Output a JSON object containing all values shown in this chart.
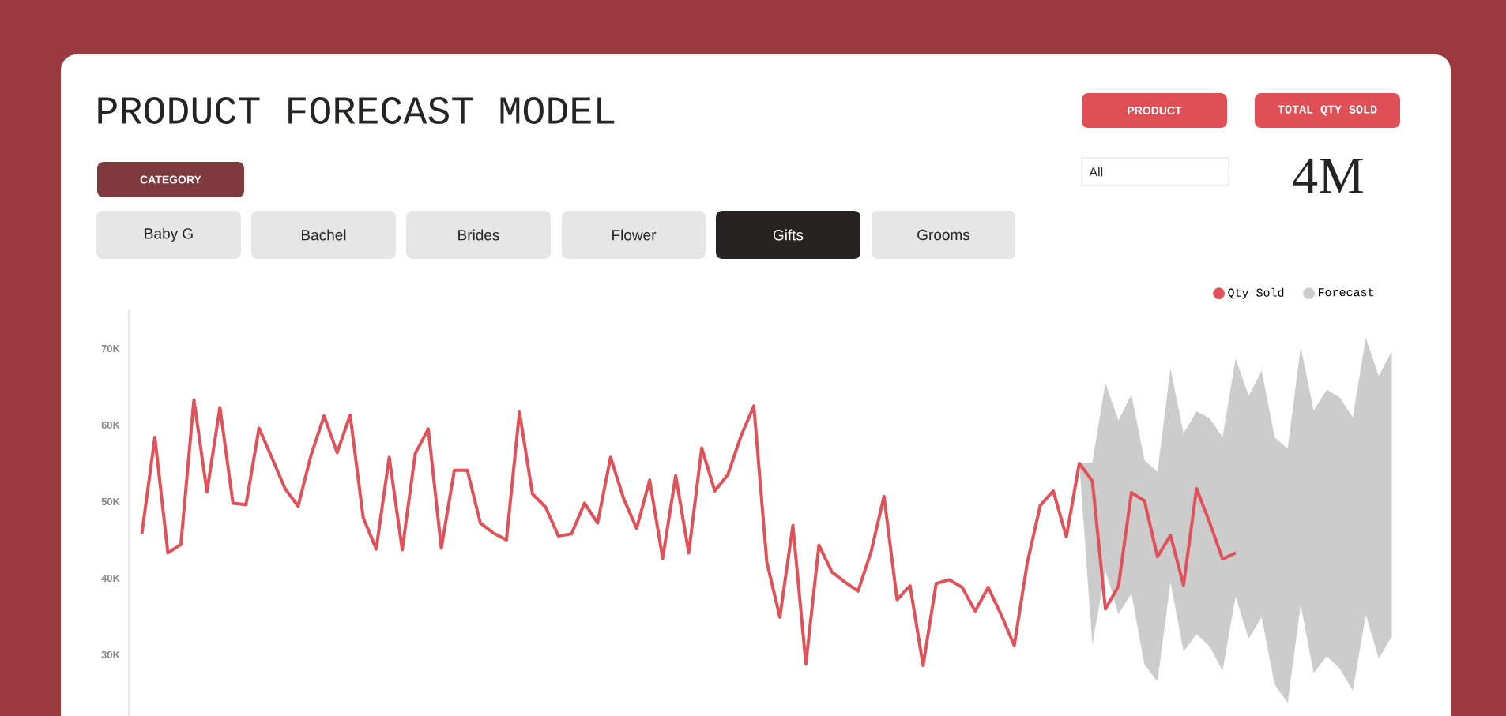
{
  "chart_data": {
    "type": "line",
    "title": "PRODUCT FORECAST MODEL",
    "annotations": [
      "CATEGORY",
      "Baby G",
      "Bachel",
      "Brides",
      "Flower",
      "Gifts",
      "Grooms",
      "PRODUCT",
      "TOTAL QTY SOLD",
      "All",
      "4M"
    ],
    "categories": [
      null,
      null,
      null,
      null,
      null,
      null,
      null,
      null,
      null,
      null,
      null,
      null,
      null,
      null,
      null,
      null,
      null,
      null,
      null,
      null,
      null,
      null,
      null,
      null,
      null,
      null,
      null,
      null,
      null,
      null,
      null,
      null,
      null,
      null,
      null,
      null,
      null,
      null,
      null,
      null,
      null,
      null,
      null,
      null,
      null,
      null,
      null,
      null,
      null,
      null,
      null,
      null,
      null,
      null,
      null,
      null,
      null,
      null,
      null,
      null,
      null,
      null,
      null,
      null,
      null,
      null,
      null,
      null,
      null,
      null,
      null,
      null,
      null,
      null,
      null,
      null,
      null,
      null,
      null,
      null,
      null,
      null,
      null,
      null,
      null,
      null,
      null,
      null,
      null,
      null,
      null,
      null,
      null,
      null,
      null,
      null,
      null
    ],
    "series": [
      {
        "name": "Qty Sold",
        "color": "#e0515a",
        "values": [
          45800,
          58400,
          43300,
          44400,
          63300,
          51300,
          62300,
          49800,
          49600,
          59600,
          55700,
          51700,
          49400,
          56100,
          61200,
          56400,
          61300,
          47900,
          43800,
          55800,
          43700,
          56300,
          59500,
          43900,
          54100,
          54100,
          47200,
          45900,
          45000,
          61700,
          51000,
          49300,
          45500,
          45800,
          49800,
          47200,
          55800,
          50400,
          46500,
          52800,
          42600,
          53400,
          43300,
          57000,
          51400,
          53500,
          58500,
          62500,
          42100,
          34900,
          46900,
          28800,
          44300,
          40800,
          39500,
          38300,
          43400,
          50700,
          37200,
          39000,
          28600,
          39300,
          39800,
          38800,
          35700,
          38800,
          35200,
          31200,
          42000,
          49500,
          51400,
          45400,
          55000,
          52700,
          36000,
          38900,
          51200,
          50100,
          42800,
          45600,
          39100,
          51700,
          47300,
          42500,
          43300,
          null,
          null,
          null,
          null,
          null,
          null,
          null,
          null,
          null,
          null,
          null,
          null
        ]
      },
      {
        "name": "Forecast",
        "color": "#cccccc",
        "values": [
          null,
          null,
          null,
          null,
          null,
          null,
          null,
          null,
          null,
          null,
          null,
          null,
          null,
          null,
          null,
          null,
          null,
          null,
          null,
          null,
          null,
          null,
          null,
          null,
          null,
          null,
          null,
          null,
          null,
          null,
          null,
          null,
          null,
          null,
          null,
          null,
          null,
          null,
          null,
          null,
          null,
          null,
          null,
          null,
          null,
          null,
          null,
          null,
          null,
          null,
          null,
          null,
          null,
          null,
          null,
          null,
          null,
          null,
          null,
          null,
          null,
          null,
          null,
          null,
          null,
          null,
          null,
          null,
          null,
          null,
          null,
          null,
          null,
          null,
          null,
          null,
          null,
          null,
          null,
          null,
          null,
          null,
          null,
          null,
          null,
          null,
          null,
          null,
          null,
          null,
          null,
          null,
          null,
          null,
          null,
          null,
          null
        ],
        "upper": [
          null,
          null,
          null,
          null,
          null,
          null,
          null,
          null,
          null,
          null,
          null,
          null,
          null,
          null,
          null,
          null,
          null,
          null,
          null,
          null,
          null,
          null,
          null,
          null,
          null,
          null,
          null,
          null,
          null,
          null,
          null,
          null,
          null,
          null,
          null,
          null,
          null,
          null,
          null,
          null,
          null,
          null,
          null,
          null,
          null,
          null,
          null,
          null,
          null,
          null,
          null,
          null,
          null,
          null,
          null,
          null,
          null,
          null,
          null,
          null,
          null,
          null,
          null,
          null,
          null,
          null,
          null,
          null,
          null,
          null,
          null,
          null,
          55000,
          55100,
          65500,
          60600,
          64000,
          55400,
          53900,
          67400,
          58900,
          61800,
          60900,
          58400,
          68700,
          63800,
          67100,
          58400,
          56900,
          70200,
          61900,
          64600,
          63600,
          61000,
          71400,
          66400,
          69700
        ],
        "lower": [
          null,
          null,
          null,
          null,
          null,
          null,
          null,
          null,
          null,
          null,
          null,
          null,
          null,
          null,
          null,
          null,
          null,
          null,
          null,
          null,
          null,
          null,
          null,
          null,
          null,
          null,
          null,
          null,
          null,
          null,
          null,
          null,
          null,
          null,
          null,
          null,
          null,
          null,
          null,
          null,
          null,
          null,
          null,
          null,
          null,
          null,
          null,
          null,
          null,
          null,
          null,
          null,
          null,
          null,
          null,
          null,
          null,
          null,
          null,
          null,
          null,
          null,
          null,
          null,
          null,
          null,
          null,
          null,
          null,
          null,
          null,
          null,
          55000,
          31300,
          41000,
          35300,
          38000,
          28700,
          26500,
          39500,
          30400,
          32700,
          31100,
          27900,
          37600,
          32100,
          34900,
          26100,
          23700,
          36500,
          27600,
          29800,
          28200,
          25300,
          35200,
          29500,
          32400
        ]
      }
    ],
    "ylim": [
      22000,
      75000
    ],
    "yticks": [
      {
        "value": 30000,
        "label": "30K"
      },
      {
        "value": 40000,
        "label": "40K"
      },
      {
        "value": 50000,
        "label": "50K"
      },
      {
        "value": 60000,
        "label": "60K"
      },
      {
        "value": 70000,
        "label": "70K"
      }
    ],
    "legend": "top right"
  }
}
